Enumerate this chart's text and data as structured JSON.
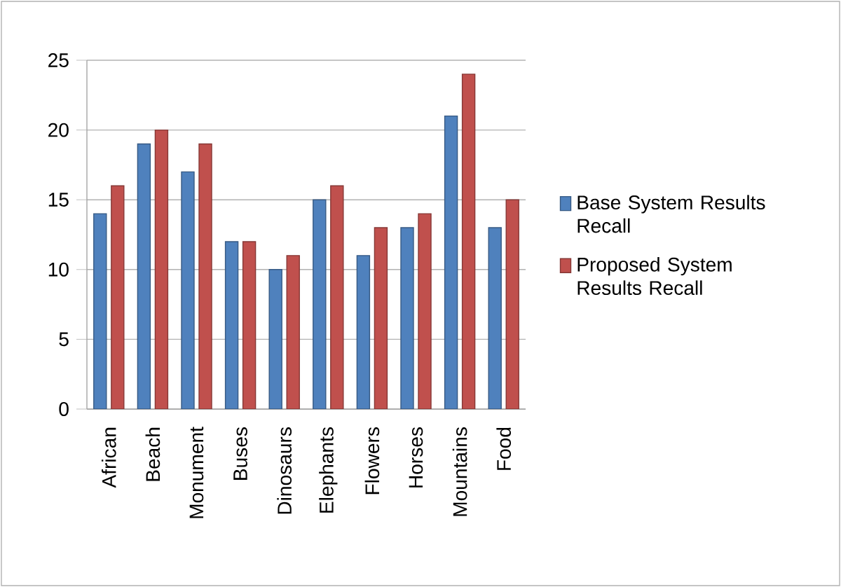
{
  "chart_data": {
    "type": "bar",
    "categories": [
      "African",
      "Beach",
      "Monument",
      "Buses",
      "Dinosaurs",
      "Elephants",
      "Flowers",
      "Horses",
      "Mountains",
      "Food"
    ],
    "series": [
      {
        "name": "Base System Results Recall",
        "color": "#4f81bd",
        "values": [
          14,
          19,
          17,
          12,
          10,
          15,
          11,
          13,
          21,
          13
        ]
      },
      {
        "name": "Proposed System Results Recall",
        "color": "#c0504d",
        "values": [
          16,
          20,
          19,
          12,
          11,
          16,
          13,
          14,
          24,
          15
        ]
      }
    ],
    "ylim": [
      0,
      25
    ],
    "yticks": [
      0,
      5,
      10,
      15,
      20,
      25
    ],
    "grid": "y",
    "legend": "right"
  }
}
